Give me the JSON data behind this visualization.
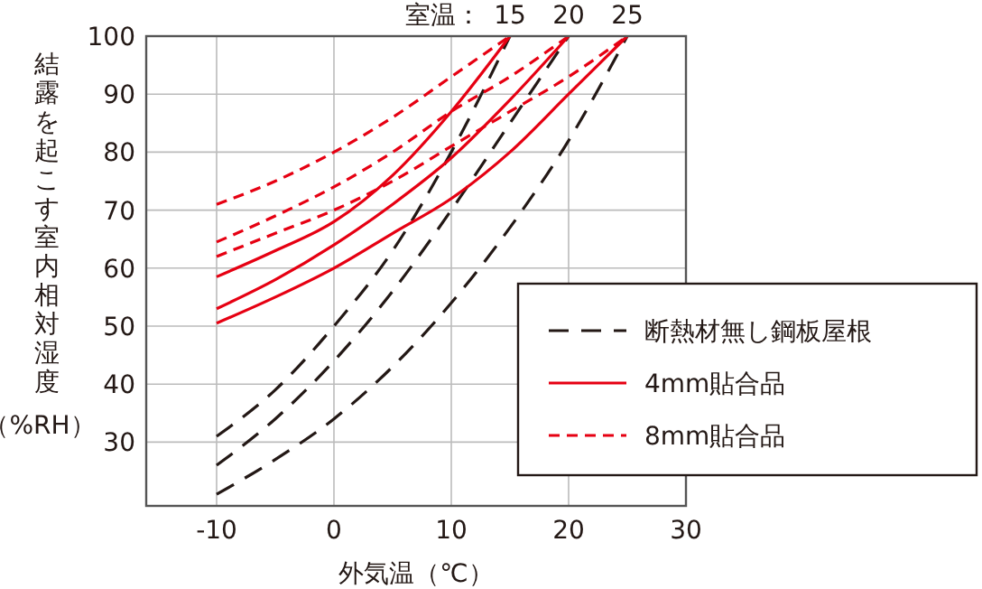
{
  "chart_data": {
    "type": "line",
    "xlabel": "外気温（℃）",
    "ylabel": "結露を起こす室内相対湿度（%RH）",
    "annotations": [
      "室温：",
      {
        "text": "15",
        "x": 15,
        "y": 100
      },
      {
        "text": "20",
        "x": 20,
        "y": 100
      },
      {
        "text": "25",
        "x": 25,
        "y": 100
      }
    ],
    "xlim": [
      -16,
      30
    ],
    "xticks": [
      -10,
      0,
      10,
      20,
      30
    ],
    "ylim": [
      19,
      100
    ],
    "yticks": [
      30,
      40,
      50,
      60,
      70,
      80,
      90,
      100
    ],
    "grid": true,
    "legend": "bottom right",
    "series": [
      {
        "name": "断熱材無し鋼板屋根",
        "color": "#231815",
        "line_style": "dashed",
        "x": [
          -10,
          -5,
          0,
          5,
          10,
          15
        ],
        "values": [
          31,
          39,
          50,
          63,
          80,
          100
        ]
      },
      {
        "color": "#231815",
        "line_style": "dashed",
        "x": [
          -10,
          -5,
          0,
          5,
          10,
          15,
          20
        ],
        "values": [
          26,
          34,
          44,
          56,
          70,
          85,
          100
        ]
      },
      {
        "color": "#231815",
        "line_style": "dashed",
        "x": [
          -10,
          -5,
          0,
          5,
          10,
          15,
          20,
          25
        ],
        "values": [
          21,
          27,
          34,
          43,
          54,
          67,
          82,
          100
        ]
      },
      {
        "name": "4mm貼合品",
        "color": "#e60012",
        "line_style": "solid",
        "x": [
          -10,
          -5,
          0,
          5,
          10,
          15
        ],
        "values": [
          58.5,
          63,
          68,
          76,
          87,
          100
        ]
      },
      {
        "color": "#e60012",
        "line_style": "solid",
        "x": [
          -10,
          -5,
          0,
          5,
          10,
          15,
          20
        ],
        "values": [
          53,
          58,
          64,
          71,
          79,
          89,
          100
        ]
      },
      {
        "color": "#e60012",
        "line_style": "solid",
        "x": [
          -10,
          -5,
          0,
          5,
          10,
          15,
          20,
          25
        ],
        "values": [
          50.5,
          55,
          60,
          66,
          72,
          80,
          90,
          100
        ]
      },
      {
        "name": "8mm貼合品",
        "color": "#e60012",
        "line_style": "dotted",
        "x": [
          -10,
          -5,
          0,
          5,
          10,
          15
        ],
        "values": [
          71,
          75,
          80,
          86,
          93,
          100
        ]
      },
      {
        "color": "#e60012",
        "line_style": "dotted",
        "x": [
          -10,
          -5,
          0,
          5,
          10,
          15,
          20
        ],
        "values": [
          64.5,
          69,
          74,
          80,
          87,
          93,
          100
        ]
      },
      {
        "color": "#e60012",
        "line_style": "dotted",
        "x": [
          -10,
          -5,
          0,
          5,
          10,
          15,
          20,
          25
        ],
        "values": [
          62,
          66,
          70,
          75,
          81,
          87,
          93,
          100
        ]
      }
    ]
  }
}
